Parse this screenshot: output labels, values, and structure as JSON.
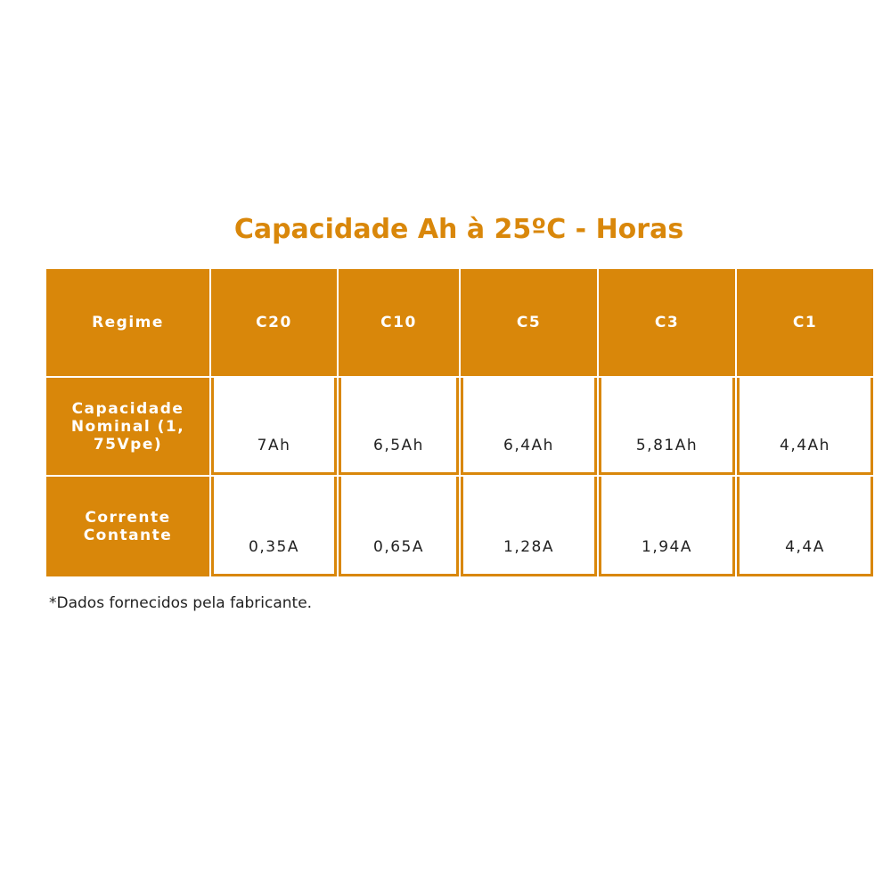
{
  "title": "Capacidade Ah à 25ºC - Horas",
  "table": {
    "header": [
      "Regime",
      "C20",
      "C10",
      "C5",
      "C3",
      "C1"
    ],
    "rows": [
      [
        "Capacidade Nominal (1, 75Vpe)",
        "7Ah",
        "6,5Ah",
        "6,4Ah",
        "5,81Ah",
        "4,4Ah"
      ],
      [
        "Corrente Contante",
        "0,35A",
        "0,65A",
        "1,28A",
        "1,94A",
        "4,4A"
      ]
    ]
  },
  "footnote": "*Dados fornecidos pela fabricante."
}
